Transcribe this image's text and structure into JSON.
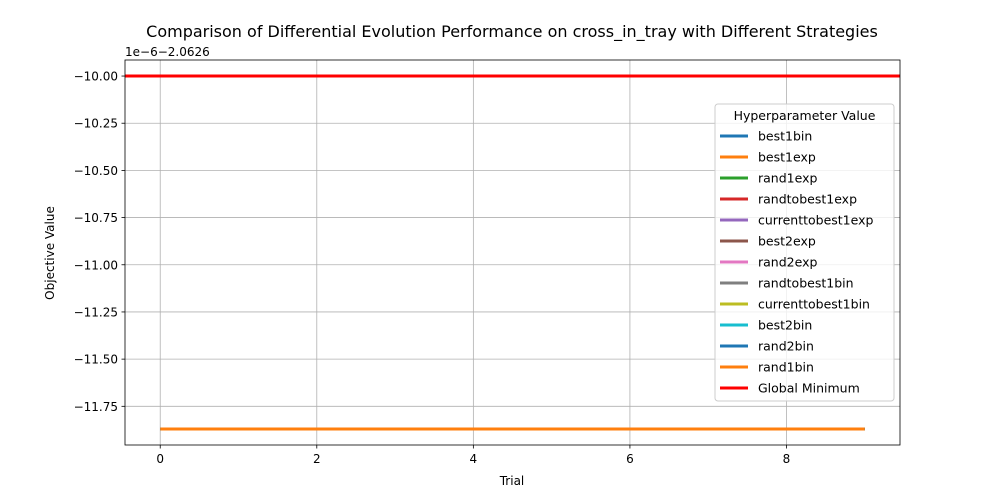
{
  "chart_data": {
    "type": "line",
    "title": "Comparison of Differential Evolution Performance on cross_in_tray with Different Strategies",
    "xlabel": "Trial",
    "ylabel": "Objective Value",
    "offset_label": "1e−6−2.0626",
    "xlim": [
      -0.45,
      9.45
    ],
    "ylim": [
      -11.955,
      -9.915
    ],
    "x_ticks": [
      0,
      2,
      4,
      6,
      8
    ],
    "x_tick_labels": [
      "0",
      "2",
      "4",
      "6",
      "8"
    ],
    "y_ticks": [
      -10.0,
      -10.25,
      -10.5,
      -10.75,
      -11.0,
      -11.25,
      -11.5,
      -11.75
    ],
    "y_tick_labels": [
      "−10.00",
      "−10.25",
      "−10.50",
      "−10.75",
      "−11.00",
      "−11.25",
      "−11.50",
      "−11.75"
    ],
    "grid": true,
    "legend": {
      "title": "Hyperparameter Value",
      "placement": "right"
    },
    "x": [
      0,
      1,
      2,
      3,
      4,
      5,
      6,
      7,
      8,
      9
    ],
    "series": [
      {
        "name": "best1bin",
        "color": "#1f77b4",
        "values": [
          -11.87,
          -11.87,
          -11.87,
          -11.87,
          -11.87,
          -11.87,
          -11.87,
          -11.87,
          -11.87,
          -11.87
        ]
      },
      {
        "name": "best1exp",
        "color": "#ff7f0e",
        "values": [
          -11.87,
          -11.87,
          -11.87,
          -11.87,
          -11.87,
          -11.87,
          -11.87,
          -11.87,
          -11.87,
          -11.87
        ]
      },
      {
        "name": "rand1exp",
        "color": "#2ca02c",
        "values": [
          -11.87,
          -11.87,
          -11.87,
          -11.87,
          -11.87,
          -11.87,
          -11.87,
          -11.87,
          -11.87,
          -11.87
        ]
      },
      {
        "name": "randtobest1exp",
        "color": "#d62728",
        "values": [
          -11.87,
          -11.87,
          -11.87,
          -11.87,
          -11.87,
          -11.87,
          -11.87,
          -11.87,
          -11.87,
          -11.87
        ]
      },
      {
        "name": "currenttobest1exp",
        "color": "#9467bd",
        "values": [
          -11.87,
          -11.87,
          -11.87,
          -11.87,
          -11.87,
          -11.87,
          -11.87,
          -11.87,
          -11.87,
          -11.87
        ]
      },
      {
        "name": "best2exp",
        "color": "#8c564b",
        "values": [
          -11.87,
          -11.87,
          -11.87,
          -11.87,
          -11.87,
          -11.87,
          -11.87,
          -11.87,
          -11.87,
          -11.87
        ]
      },
      {
        "name": "rand2exp",
        "color": "#e377c2",
        "values": [
          -11.87,
          -11.87,
          -11.87,
          -11.87,
          -11.87,
          -11.87,
          -11.87,
          -11.87,
          -11.87,
          -11.87
        ]
      },
      {
        "name": "randtobest1bin",
        "color": "#7f7f7f",
        "values": [
          -11.87,
          -11.87,
          -11.87,
          -11.87,
          -11.87,
          -11.87,
          -11.87,
          -11.87,
          -11.87,
          -11.87
        ]
      },
      {
        "name": "currenttobest1bin",
        "color": "#bcbd22",
        "values": [
          -11.87,
          -11.87,
          -11.87,
          -11.87,
          -11.87,
          -11.87,
          -11.87,
          -11.87,
          -11.87,
          -11.87
        ]
      },
      {
        "name": "best2bin",
        "color": "#17becf",
        "values": [
          -11.87,
          -11.87,
          -11.87,
          -11.87,
          -11.87,
          -11.87,
          -11.87,
          -11.87,
          -11.87,
          -11.87
        ]
      },
      {
        "name": "rand2bin",
        "color": "#1f77b4",
        "values": [
          -11.87,
          -11.87,
          -11.87,
          -11.87,
          -11.87,
          -11.87,
          -11.87,
          -11.87,
          -11.87,
          -11.87
        ]
      },
      {
        "name": "rand1bin",
        "color": "#ff7f0e",
        "values": [
          -11.87,
          -11.87,
          -11.87,
          -11.87,
          -11.87,
          -11.87,
          -11.87,
          -11.87,
          -11.87,
          -11.87
        ]
      }
    ],
    "reference_line": {
      "name": "Global Minimum",
      "color": "#ff0000",
      "value": -10.0
    }
  }
}
